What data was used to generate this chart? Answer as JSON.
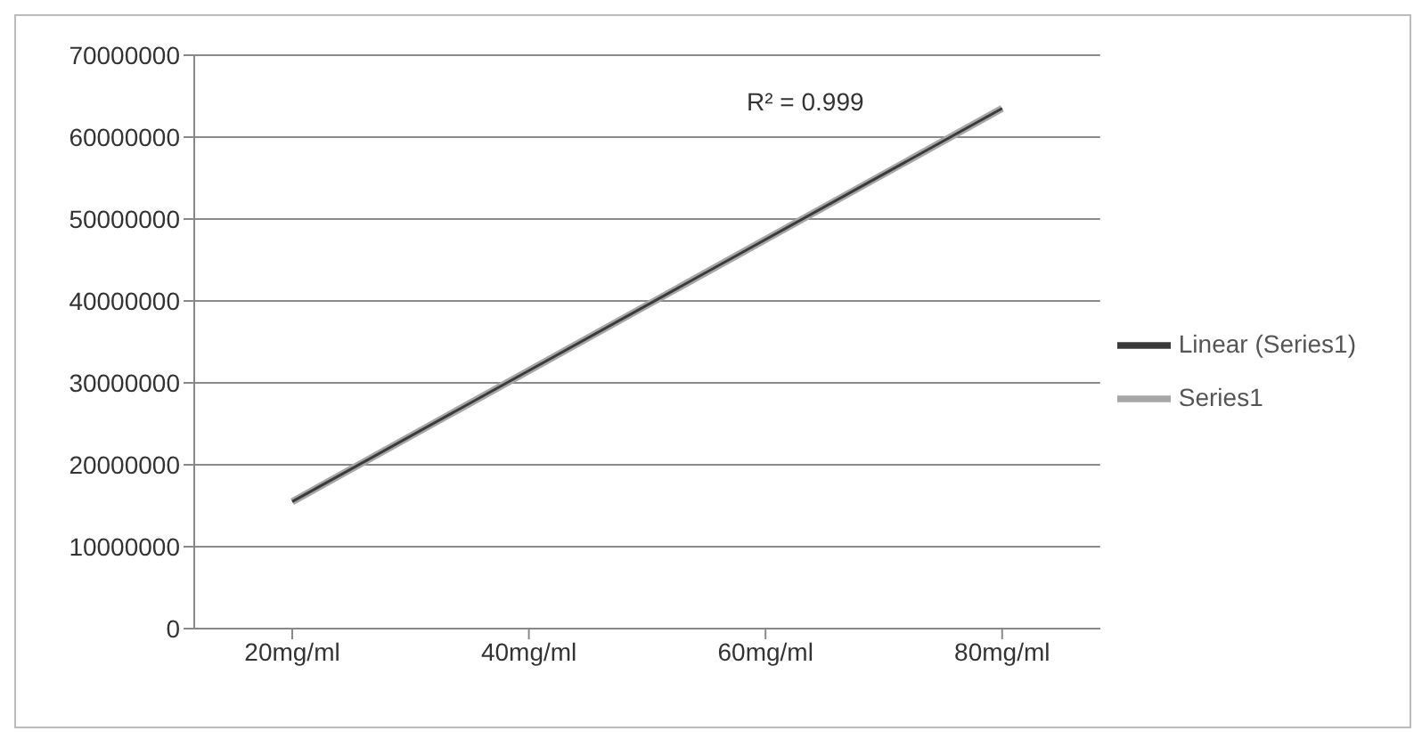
{
  "chart_data": {
    "type": "line",
    "categories": [
      "20mg/ml",
      "40mg/ml",
      "60mg/ml",
      "80mg/ml"
    ],
    "series": [
      {
        "name": "Series1",
        "color": "#a6a6a6",
        "values": [
          15500000,
          31500000,
          47500000,
          63500000
        ]
      },
      {
        "name": "Linear (Series1)",
        "color": "#3a3a3a",
        "values": [
          15500000,
          31500000,
          47500000,
          63500000
        ]
      }
    ],
    "ylim": [
      0,
      70000000
    ],
    "yticks": [
      0,
      10000000,
      20000000,
      30000000,
      40000000,
      50000000,
      60000000,
      70000000
    ],
    "grid": "y",
    "legend": "right",
    "marker": "none",
    "line_style": "solid",
    "annotations": [
      "R² = 0.999"
    ]
  }
}
